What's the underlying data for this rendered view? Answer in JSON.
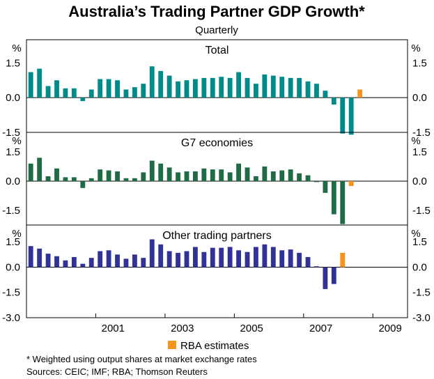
{
  "chart_data": {
    "type": "bar",
    "title": "Australia’s Trading Partner GDP Growth*",
    "subtitle": "Quarterly",
    "unit_label": "%",
    "x_start": 1999.0,
    "x_end": 2010.0,
    "x_ticks": [
      2001,
      2003,
      2005,
      2007,
      2009
    ],
    "legend": {
      "label": "RBA estimates",
      "color": "#F7941D",
      "position": "bottom-center"
    },
    "footnote": "*   Weighted using output shares at market exchange rates",
    "sources": "Sources: CEIC; IMF; RBA; Thomson Reuters",
    "panels": [
      {
        "name": "Total",
        "color": "#008B8B",
        "ylim": [
          -1.5,
          2.5
        ],
        "ticks": [
          "1.5",
          "0.0",
          "-1.5"
        ],
        "tick_values": [
          1.5,
          0.0,
          -1.5
        ],
        "values": [
          1.1,
          1.25,
          0.5,
          0.75,
          0.4,
          0.4,
          -0.15,
          0.35,
          0.8,
          0.8,
          0.75,
          0.35,
          0.45,
          0.6,
          1.35,
          1.15,
          0.95,
          0.7,
          0.75,
          0.8,
          0.85,
          0.85,
          0.9,
          0.85,
          1.1,
          0.85,
          0.6,
          1.0,
          0.95,
          0.9,
          0.85,
          0.85,
          0.7,
          0.6,
          0.3,
          -0.3,
          -1.55,
          -1.6,
          0.35
        ],
        "estimate_from": 38
      },
      {
        "name": "G7 economies",
        "color": "#1F6B45",
        "ylim": [
          -2.25,
          2.5
        ],
        "ticks": [
          "1.5",
          "0.0",
          "-1.5"
        ],
        "tick_values": [
          1.5,
          0.0,
          -1.5
        ],
        "values": [
          0.9,
          1.2,
          0.25,
          0.65,
          0.2,
          0.2,
          -0.35,
          0.15,
          0.6,
          0.55,
          0.5,
          0.15,
          0.15,
          0.45,
          1.05,
          0.9,
          0.7,
          0.45,
          0.5,
          0.5,
          0.65,
          0.6,
          0.6,
          0.45,
          0.9,
          0.7,
          0.25,
          0.75,
          0.5,
          0.55,
          0.6,
          0.4,
          0.3,
          -0.05,
          -0.6,
          -1.7,
          -2.2,
          -0.25
        ],
        "estimate_from": 37
      },
      {
        "name": "Other trading partners",
        "color": "#303297",
        "ylim": [
          -3.0,
          2.5
        ],
        "ticks": [
          "1.5",
          "0.0",
          "-1.5",
          "-3.0"
        ],
        "tick_values": [
          1.5,
          0.0,
          -1.5,
          -3.0
        ],
        "values": [
          1.25,
          1.1,
          0.8,
          0.65,
          0.4,
          0.6,
          0.2,
          0.55,
          0.95,
          1.0,
          0.75,
          0.5,
          0.75,
          0.55,
          1.65,
          1.35,
          0.95,
          0.85,
          0.95,
          1.2,
          0.9,
          1.15,
          1.15,
          1.2,
          1.0,
          0.9,
          1.2,
          1.35,
          1.2,
          1.0,
          1.05,
          0.85,
          0.6,
          0.05,
          -1.3,
          -1.0,
          0.85
        ],
        "estimate_from": 36
      }
    ]
  }
}
